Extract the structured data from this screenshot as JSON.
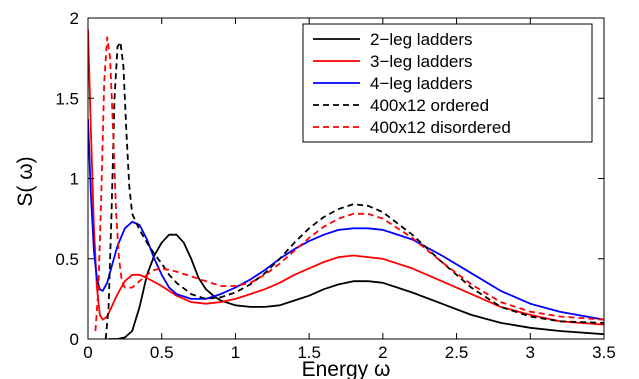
{
  "chart_data": {
    "type": "line",
    "xlabel": "Energy ω",
    "ylabel": "S( ω)",
    "xlim": [
      0,
      3.5
    ],
    "ylim": [
      0,
      2
    ],
    "xticks": [
      0,
      0.5,
      1,
      1.5,
      2,
      2.5,
      3,
      3.5
    ],
    "xtick_labels": [
      "0",
      "0.5",
      "1",
      "1.5",
      "2",
      "2.5",
      "3",
      "3.5"
    ],
    "yticks": [
      0,
      0.5,
      1,
      1.5,
      2
    ],
    "ytick_labels": [
      "0",
      "0.5",
      "1",
      "1.5",
      "2"
    ],
    "grid": false,
    "legend_position": "top-right",
    "series": [
      {
        "name": "2−leg ladders",
        "color": "#000000",
        "dash": "solid",
        "points": [
          [
            0.14,
            0.0
          ],
          [
            0.2,
            0.0
          ],
          [
            0.25,
            0.01
          ],
          [
            0.3,
            0.05
          ],
          [
            0.35,
            0.2
          ],
          [
            0.4,
            0.4
          ],
          [
            0.45,
            0.52
          ],
          [
            0.5,
            0.6
          ],
          [
            0.55,
            0.65
          ],
          [
            0.6,
            0.65
          ],
          [
            0.65,
            0.6
          ],
          [
            0.7,
            0.5
          ],
          [
            0.75,
            0.38
          ],
          [
            0.8,
            0.31
          ],
          [
            0.85,
            0.27
          ],
          [
            0.9,
            0.24
          ],
          [
            1.0,
            0.21
          ],
          [
            1.1,
            0.2
          ],
          [
            1.2,
            0.2
          ],
          [
            1.3,
            0.21
          ],
          [
            1.4,
            0.24
          ],
          [
            1.5,
            0.27
          ],
          [
            1.6,
            0.31
          ],
          [
            1.7,
            0.34
          ],
          [
            1.8,
            0.36
          ],
          [
            1.9,
            0.36
          ],
          [
            2.0,
            0.35
          ],
          [
            2.2,
            0.29
          ],
          [
            2.4,
            0.22
          ],
          [
            2.6,
            0.15
          ],
          [
            2.8,
            0.1
          ],
          [
            3.0,
            0.07
          ],
          [
            3.2,
            0.05
          ],
          [
            3.5,
            0.03
          ]
        ]
      },
      {
        "name": "3−leg ladders",
        "color": "#ff0000",
        "dash": "solid",
        "points": [
          [
            0.0,
            1.93
          ],
          [
            0.02,
            1.3
          ],
          [
            0.04,
            0.7
          ],
          [
            0.06,
            0.33
          ],
          [
            0.08,
            0.15
          ],
          [
            0.1,
            0.12
          ],
          [
            0.13,
            0.14
          ],
          [
            0.16,
            0.2
          ],
          [
            0.2,
            0.28
          ],
          [
            0.25,
            0.36
          ],
          [
            0.3,
            0.4
          ],
          [
            0.35,
            0.4
          ],
          [
            0.4,
            0.38
          ],
          [
            0.5,
            0.33
          ],
          [
            0.6,
            0.27
          ],
          [
            0.7,
            0.23
          ],
          [
            0.8,
            0.22
          ],
          [
            0.9,
            0.23
          ],
          [
            1.0,
            0.25
          ],
          [
            1.1,
            0.28
          ],
          [
            1.2,
            0.31
          ],
          [
            1.3,
            0.35
          ],
          [
            1.4,
            0.4
          ],
          [
            1.5,
            0.44
          ],
          [
            1.6,
            0.48
          ],
          [
            1.7,
            0.51
          ],
          [
            1.8,
            0.52
          ],
          [
            1.9,
            0.51
          ],
          [
            2.0,
            0.5
          ],
          [
            2.2,
            0.44
          ],
          [
            2.4,
            0.36
          ],
          [
            2.6,
            0.28
          ],
          [
            2.8,
            0.2
          ],
          [
            3.0,
            0.15
          ],
          [
            3.2,
            0.11
          ],
          [
            3.5,
            0.09
          ]
        ]
      },
      {
        "name": "4−leg ladders",
        "color": "#0000ff",
        "dash": "solid",
        "points": [
          [
            0.0,
            1.37
          ],
          [
            0.02,
            0.9
          ],
          [
            0.04,
            0.55
          ],
          [
            0.06,
            0.38
          ],
          [
            0.08,
            0.31
          ],
          [
            0.1,
            0.3
          ],
          [
            0.13,
            0.35
          ],
          [
            0.16,
            0.45
          ],
          [
            0.2,
            0.58
          ],
          [
            0.25,
            0.69
          ],
          [
            0.3,
            0.73
          ],
          [
            0.35,
            0.71
          ],
          [
            0.4,
            0.62
          ],
          [
            0.45,
            0.5
          ],
          [
            0.5,
            0.4
          ],
          [
            0.55,
            0.32
          ],
          [
            0.6,
            0.28
          ],
          [
            0.7,
            0.25
          ],
          [
            0.8,
            0.25
          ],
          [
            0.9,
            0.28
          ],
          [
            1.0,
            0.32
          ],
          [
            1.1,
            0.37
          ],
          [
            1.2,
            0.43
          ],
          [
            1.3,
            0.5
          ],
          [
            1.4,
            0.56
          ],
          [
            1.5,
            0.61
          ],
          [
            1.6,
            0.65
          ],
          [
            1.7,
            0.68
          ],
          [
            1.8,
            0.69
          ],
          [
            1.9,
            0.69
          ],
          [
            2.0,
            0.68
          ],
          [
            2.2,
            0.62
          ],
          [
            2.4,
            0.52
          ],
          [
            2.6,
            0.41
          ],
          [
            2.8,
            0.3
          ],
          [
            3.0,
            0.22
          ],
          [
            3.2,
            0.17
          ],
          [
            3.5,
            0.12
          ]
        ]
      },
      {
        "name": "400x12 ordered",
        "color": "#000000",
        "dash": "dashed",
        "points": [
          [
            0.12,
            0.0
          ],
          [
            0.14,
            0.2
          ],
          [
            0.16,
            0.8
          ],
          [
            0.18,
            1.5
          ],
          [
            0.2,
            1.82
          ],
          [
            0.22,
            1.85
          ],
          [
            0.24,
            1.7
          ],
          [
            0.26,
            1.3
          ],
          [
            0.28,
            0.95
          ],
          [
            0.3,
            0.78
          ],
          [
            0.35,
            0.68
          ],
          [
            0.4,
            0.6
          ],
          [
            0.45,
            0.53
          ],
          [
            0.5,
            0.47
          ],
          [
            0.55,
            0.4
          ],
          [
            0.6,
            0.35
          ],
          [
            0.7,
            0.28
          ],
          [
            0.8,
            0.25
          ],
          [
            0.9,
            0.26
          ],
          [
            1.0,
            0.29
          ],
          [
            1.1,
            0.34
          ],
          [
            1.2,
            0.41
          ],
          [
            1.3,
            0.5
          ],
          [
            1.4,
            0.6
          ],
          [
            1.5,
            0.69
          ],
          [
            1.6,
            0.76
          ],
          [
            1.7,
            0.81
          ],
          [
            1.8,
            0.84
          ],
          [
            1.9,
            0.83
          ],
          [
            2.0,
            0.79
          ],
          [
            2.2,
            0.65
          ],
          [
            2.4,
            0.48
          ],
          [
            2.6,
            0.32
          ],
          [
            2.8,
            0.2
          ],
          [
            3.0,
            0.14
          ],
          [
            3.2,
            0.11
          ],
          [
            3.5,
            0.1
          ]
        ]
      },
      {
        "name": "400x12 disordered",
        "color": "#ff0000",
        "dash": "dashed",
        "points": [
          [
            0.05,
            0.05
          ],
          [
            0.07,
            0.3
          ],
          [
            0.09,
            0.9
          ],
          [
            0.11,
            1.6
          ],
          [
            0.13,
            1.88
          ],
          [
            0.15,
            1.75
          ],
          [
            0.17,
            1.3
          ],
          [
            0.19,
            0.8
          ],
          [
            0.21,
            0.5
          ],
          [
            0.23,
            0.36
          ],
          [
            0.25,
            0.32
          ],
          [
            0.3,
            0.32
          ],
          [
            0.35,
            0.36
          ],
          [
            0.4,
            0.4
          ],
          [
            0.45,
            0.43
          ],
          [
            0.5,
            0.44
          ],
          [
            0.6,
            0.42
          ],
          [
            0.7,
            0.39
          ],
          [
            0.8,
            0.36
          ],
          [
            0.9,
            0.33
          ],
          [
            1.0,
            0.33
          ],
          [
            1.1,
            0.35
          ],
          [
            1.2,
            0.4
          ],
          [
            1.3,
            0.47
          ],
          [
            1.4,
            0.55
          ],
          [
            1.5,
            0.63
          ],
          [
            1.6,
            0.7
          ],
          [
            1.7,
            0.75
          ],
          [
            1.8,
            0.78
          ],
          [
            1.9,
            0.78
          ],
          [
            2.0,
            0.75
          ],
          [
            2.2,
            0.63
          ],
          [
            2.4,
            0.48
          ],
          [
            2.6,
            0.34
          ],
          [
            2.8,
            0.23
          ],
          [
            3.0,
            0.17
          ],
          [
            3.2,
            0.14
          ],
          [
            3.5,
            0.12
          ]
        ]
      }
    ]
  }
}
